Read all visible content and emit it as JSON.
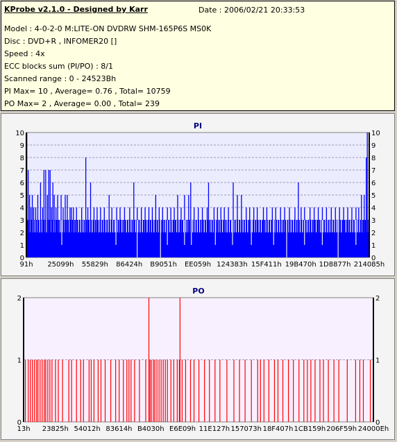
{
  "header": {
    "title": "KProbe v2.1.0 - Designed by Karr",
    "date": "Date : 2006/02/21 20:33:53",
    "model": "Model : 4-0-2-0 M:LITE-ON DVDRW SHM-165P6S MS0K",
    "disc": "Disc : DVD+R , INFOMER20 []",
    "speed": "Speed : 4x",
    "ecc": "ECC blocks sum (PI/PO) : 8/1",
    "range": "Scanned range : 0 - 24523Bh",
    "pi_stats": "PI Max= 10 , Average= 0.76 , Total= 10759",
    "po_stats": "PO Max= 2 , Average= 0.00 , Total= 239"
  },
  "chart_data": [
    {
      "type": "bar",
      "title": "PI",
      "ylim": [
        0,
        10
      ],
      "yticks": [
        "0",
        "1",
        "2",
        "3",
        "4",
        "5",
        "6",
        "7",
        "8",
        "9",
        "10"
      ],
      "xticks": [
        "91h",
        "25099h",
        "55829h",
        "86424h",
        "B9051h",
        "EE059h",
        "124383h",
        "15F411h",
        "19B470h",
        "1D8877h",
        "214085h"
      ],
      "grid": true,
      "color": "#0000ff",
      "background": "#ececff",
      "baseline_level": 2,
      "band_level": 3,
      "spikes": [
        [
          0.0,
          10
        ],
        [
          0.004,
          7
        ],
        [
          0.008,
          5
        ],
        [
          0.012,
          4
        ],
        [
          0.016,
          5
        ],
        [
          0.02,
          4
        ],
        [
          0.026,
          4
        ],
        [
          0.032,
          5
        ],
        [
          0.04,
          6
        ],
        [
          0.046,
          4
        ],
        [
          0.05,
          7
        ],
        [
          0.055,
          7
        ],
        [
          0.06,
          5
        ],
        [
          0.064,
          7
        ],
        [
          0.068,
          7
        ],
        [
          0.072,
          4
        ],
        [
          0.076,
          6
        ],
        [
          0.08,
          5
        ],
        [
          0.085,
          4
        ],
        [
          0.09,
          5
        ],
        [
          0.1,
          5
        ],
        [
          0.106,
          4
        ],
        [
          0.112,
          5
        ],
        [
          0.118,
          5
        ],
        [
          0.126,
          4
        ],
        [
          0.13,
          4
        ],
        [
          0.136,
          4
        ],
        [
          0.145,
          4
        ],
        [
          0.16,
          4
        ],
        [
          0.172,
          8
        ],
        [
          0.178,
          4
        ],
        [
          0.186,
          6
        ],
        [
          0.196,
          4
        ],
        [
          0.205,
          4
        ],
        [
          0.215,
          4
        ],
        [
          0.226,
          4
        ],
        [
          0.24,
          5
        ],
        [
          0.248,
          4
        ],
        [
          0.262,
          4
        ],
        [
          0.272,
          4
        ],
        [
          0.285,
          4
        ],
        [
          0.3,
          4
        ],
        [
          0.312,
          6
        ],
        [
          0.322,
          4
        ],
        [
          0.334,
          4
        ],
        [
          0.345,
          4
        ],
        [
          0.356,
          4
        ],
        [
          0.366,
          4
        ],
        [
          0.376,
          5
        ],
        [
          0.386,
          4
        ],
        [
          0.396,
          4
        ],
        [
          0.41,
          4
        ],
        [
          0.42,
          4
        ],
        [
          0.43,
          4
        ],
        [
          0.44,
          5
        ],
        [
          0.45,
          4
        ],
        [
          0.46,
          5
        ],
        [
          0.472,
          5
        ],
        [
          0.478,
          6
        ],
        [
          0.488,
          4
        ],
        [
          0.5,
          4
        ],
        [
          0.512,
          4
        ],
        [
          0.526,
          4
        ],
        [
          0.53,
          6
        ],
        [
          0.546,
          4
        ],
        [
          0.556,
          4
        ],
        [
          0.566,
          4
        ],
        [
          0.576,
          4
        ],
        [
          0.588,
          4
        ],
        [
          0.602,
          6
        ],
        [
          0.614,
          5
        ],
        [
          0.626,
          5
        ],
        [
          0.64,
          4
        ],
        [
          0.65,
          4
        ],
        [
          0.662,
          4
        ],
        [
          0.672,
          4
        ],
        [
          0.69,
          4
        ],
        [
          0.7,
          4
        ],
        [
          0.716,
          4
        ],
        [
          0.726,
          4
        ],
        [
          0.74,
          4
        ],
        [
          0.752,
          4
        ],
        [
          0.766,
          4
        ],
        [
          0.782,
          4
        ],
        [
          0.792,
          6
        ],
        [
          0.8,
          4
        ],
        [
          0.81,
          4
        ],
        [
          0.826,
          4
        ],
        [
          0.838,
          4
        ],
        [
          0.85,
          4
        ],
        [
          0.862,
          4
        ],
        [
          0.874,
          4
        ],
        [
          0.888,
          4
        ],
        [
          0.9,
          4
        ],
        [
          0.912,
          4
        ],
        [
          0.924,
          4
        ],
        [
          0.936,
          4
        ],
        [
          0.948,
          4
        ],
        [
          0.96,
          4
        ],
        [
          0.968,
          4
        ],
        [
          0.976,
          5
        ],
        [
          0.984,
          5
        ],
        [
          0.99,
          8
        ],
        [
          0.993,
          10
        ]
      ],
      "dips": [
        [
          0.102,
          1
        ],
        [
          0.26,
          1
        ],
        [
          0.322,
          0
        ],
        [
          0.39,
          0
        ],
        [
          0.41,
          1
        ],
        [
          0.46,
          1
        ],
        [
          0.48,
          1
        ],
        [
          0.55,
          1
        ],
        [
          0.6,
          1
        ],
        [
          0.655,
          1
        ],
        [
          0.72,
          1
        ],
        [
          0.758,
          0
        ],
        [
          0.81,
          1
        ],
        [
          0.862,
          1
        ],
        [
          0.908,
          0
        ],
        [
          0.96,
          1
        ]
      ]
    },
    {
      "type": "bar",
      "title": "PO",
      "ylim": [
        0,
        2
      ],
      "yticks": [
        "0",
        "1",
        "2"
      ],
      "xticks": [
        "13h",
        "23825h",
        "54012h",
        "83614h",
        "B4030h",
        "E6E09h",
        "11E127h",
        "157073h",
        "18F407h",
        "1CB159h",
        "206F59h",
        "24000Eh"
      ],
      "grid": true,
      "color": "#ff0000",
      "background": "#f8f0ff",
      "ones": [
        0.004,
        0.012,
        0.018,
        0.024,
        0.03,
        0.036,
        0.04,
        0.046,
        0.052,
        0.058,
        0.062,
        0.068,
        0.074,
        0.08,
        0.09,
        0.098,
        0.11,
        0.128,
        0.136,
        0.15,
        0.162,
        0.17,
        0.186,
        0.192,
        0.2,
        0.212,
        0.22,
        0.232,
        0.248,
        0.262,
        0.272,
        0.284,
        0.294,
        0.3,
        0.306,
        0.316,
        0.33,
        0.348,
        0.36,
        0.364,
        0.37,
        0.374,
        0.38,
        0.386,
        0.392,
        0.398,
        0.404,
        0.41,
        0.42,
        0.428,
        0.438,
        0.444,
        0.452,
        0.462,
        0.476,
        0.486,
        0.5,
        0.516,
        0.53,
        0.546,
        0.56,
        0.58,
        0.6,
        0.616,
        0.632,
        0.65,
        0.668,
        0.676,
        0.686,
        0.7,
        0.716,
        0.726,
        0.74,
        0.756,
        0.77,
        0.786,
        0.8,
        0.81,
        0.82,
        0.832,
        0.846,
        0.856,
        0.87,
        0.886,
        0.9,
        0.924,
        0.948,
        0.96,
        0.97,
        0.99
      ],
      "twos": [
        0.357,
        0.446
      ]
    }
  ]
}
